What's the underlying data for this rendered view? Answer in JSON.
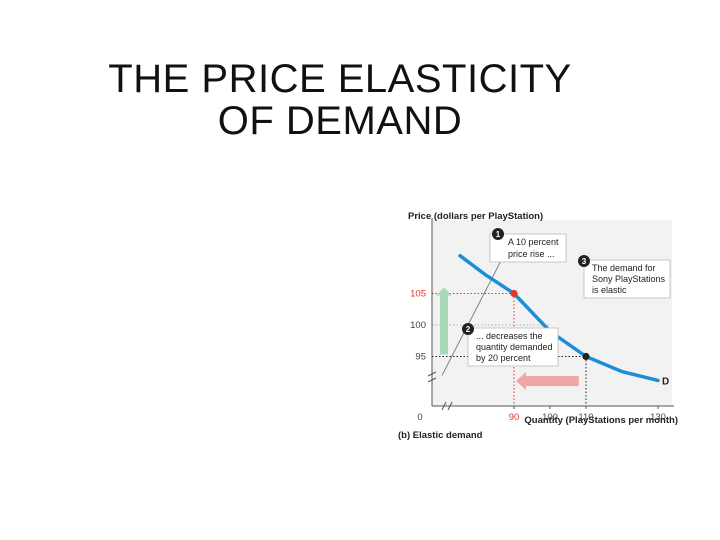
{
  "slide": {
    "title_line1": "THE PRICE ELASTICITY",
    "title_line2": "OF DEMAND"
  },
  "chart_data": {
    "type": "line",
    "ylabel": "Price (dollars per PlayStation)",
    "xlabel": "Quantity (PlayStations per month)",
    "caption": "(b)  Elastic demand",
    "x_ticks": [
      {
        "value": 0,
        "label": "0",
        "highlight": false
      },
      {
        "value": 90,
        "label": "90",
        "highlight": true
      },
      {
        "value": 100,
        "label": "100",
        "highlight": false
      },
      {
        "value": 110,
        "label": "110",
        "highlight": false
      },
      {
        "value": 130,
        "label": "130",
        "highlight": false
      }
    ],
    "y_ticks": [
      {
        "value": 105,
        "label": "105",
        "highlight": true
      },
      {
        "value": 100,
        "label": "100",
        "highlight": false
      },
      {
        "value": 95,
        "label": "95",
        "highlight": false
      }
    ],
    "series": [
      {
        "name": "D",
        "color": "#1c8ed6",
        "points": [
          [
            75,
            111
          ],
          [
            82,
            108
          ],
          [
            90,
            105
          ],
          [
            100,
            99
          ],
          [
            110,
            95
          ],
          [
            120,
            92.6
          ],
          [
            130,
            91.2
          ]
        ]
      }
    ],
    "tangent": {
      "color": "#777777",
      "points": [
        [
          70,
          92
        ],
        [
          88,
          112
        ]
      ]
    },
    "highlight_points": [
      {
        "x": 90,
        "y": 105,
        "color": "#e8342a"
      },
      {
        "x": 110,
        "y": 95,
        "color": "#222222"
      }
    ],
    "annotations": [
      {
        "number": "1",
        "lines": [
          "A 10 percent",
          "price rise ..."
        ]
      },
      {
        "number": "2",
        "lines": [
          "... decreases the",
          "quantity demanded",
          "by 20 percent"
        ]
      },
      {
        "number": "3",
        "lines": [
          "The demand for",
          "Sony PlayStations",
          "is elastic"
        ]
      }
    ],
    "price_arrow_color": "#a8d8b8",
    "quantity_arrow_color": "#f2a5a5"
  }
}
